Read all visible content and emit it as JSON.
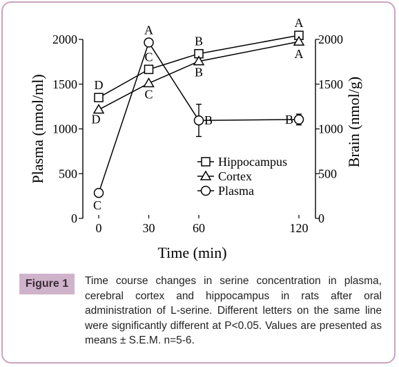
{
  "figure": {
    "label": "Figure 1",
    "caption": "Time course changes in serine concentration in plasma, cerebral cortex and hippocampus in rats after oral administration of L-serine.  Different letters on the same line were significantly different at P<0.05. Values are presented as means ± S.E.M. n=5-6."
  },
  "chart_data": {
    "type": "line",
    "xlabel": "Time (min)",
    "ylabel_left": "Plasma (nmol/ml)",
    "ylabel_right": "Brain (nmol/g)",
    "x": [
      0,
      30,
      60,
      120
    ],
    "x_ticks": [
      "0",
      "30",
      "60",
      "120"
    ],
    "ylim": [
      0,
      2000
    ],
    "y_ticks_left": [
      "0",
      "500",
      "1000",
      "1500",
      "2000"
    ],
    "y_ticks_right": [
      "0",
      "500",
      "1000",
      "1500",
      "2000"
    ],
    "legend_position": "lower-right",
    "series": [
      {
        "name": "Hippocampus",
        "marker": "square",
        "values": [
          1350,
          1665,
          1840,
          2045
        ],
        "errors": [
          0,
          0,
          0,
          0
        ],
        "letters": [
          "D",
          "C",
          "B",
          "A"
        ]
      },
      {
        "name": "Cortex",
        "marker": "triangle",
        "values": [
          1215,
          1510,
          1755,
          1975
        ],
        "errors": [
          0,
          0,
          0,
          0
        ],
        "letters": [
          "D",
          "C",
          "B",
          "A"
        ]
      },
      {
        "name": "Plasma",
        "marker": "circle",
        "values": [
          285,
          1965,
          1095,
          1105
        ],
        "errors": [
          0,
          0,
          180,
          60
        ],
        "letters": [
          "C",
          "A",
          "B",
          "B"
        ]
      }
    ]
  }
}
